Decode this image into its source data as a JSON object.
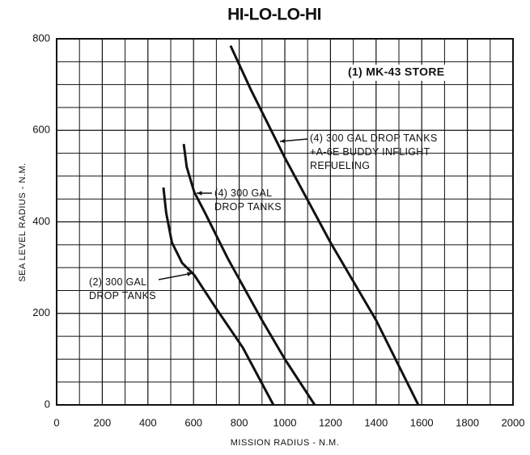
{
  "chart_data": {
    "type": "line",
    "title": "HI-LO-LO-HI",
    "xlabel": "MISSION RADIUS - N.M.",
    "ylabel": "SEA LEVEL RADIUS - N.M.",
    "xlim": [
      0,
      2000
    ],
    "ylim": [
      0,
      800
    ],
    "xticks": [
      0,
      200,
      400,
      600,
      800,
      1000,
      1200,
      1400,
      1600,
      1800,
      2000
    ],
    "yticks": [
      0,
      200,
      400,
      600,
      800
    ],
    "xminor": [
      100,
      300,
      500,
      700,
      900,
      1100,
      1300,
      1500,
      1700,
      1900
    ],
    "yminor": [
      50,
      100,
      150,
      250,
      300,
      350,
      450,
      500,
      550,
      650,
      700,
      750
    ],
    "grid": true,
    "color": "#111111",
    "annotation": "(1) MK-43 STORE",
    "series": [
      {
        "name": "(2) 300 GAL\nDROP TANKS",
        "color": "#111111",
        "x": [
          468,
          480,
          505,
          550,
          603,
          700,
          816,
          950
        ],
        "values": [
          475,
          420,
          355,
          310,
          284,
          210,
          125,
          0
        ]
      },
      {
        "name": "(4) 300 GAL\nDROP TANKS",
        "color": "#111111",
        "x": [
          557,
          570,
          603,
          650,
          750,
          900,
          1000,
          1131
        ],
        "values": [
          570,
          520,
          465,
          420,
          320,
          185,
          100,
          0
        ]
      },
      {
        "name": "(4)  300 GAL DROP TANKS\n+A-6E BUDDY INFLIGHT\nREFUELING",
        "color": "#111111",
        "x": [
          762,
          850,
          1000,
          1200,
          1400,
          1585
        ],
        "values": [
          785,
          690,
          540,
          355,
          185,
          0
        ]
      }
    ]
  }
}
